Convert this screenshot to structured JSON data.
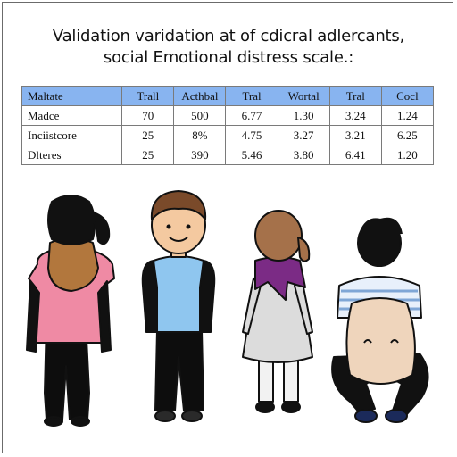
{
  "title": {
    "line1": "Validation varidation at of cdicral adlercants,",
    "line2": "social Emotional distress scale.:"
  },
  "table": {
    "headers": [
      "Maltate",
      "Trall",
      "Acthbal",
      "Tral",
      "Wortal",
      "Tral",
      "Cocl"
    ],
    "rows": [
      [
        "Madce",
        "70",
        "500",
        "6.77",
        "1.30",
        "3.24",
        "1.24"
      ],
      [
        "Inciistcore",
        "25",
        "8%",
        "4.75",
        "3.27",
        "3.21",
        "6.25"
      ],
      [
        "Dlteres",
        "25",
        "390",
        "5.46",
        "3.80",
        "6.41",
        "1.20"
      ]
    ]
  },
  "colors": {
    "header_bg": "#88b4f0",
    "pink_shirt": "#ef8aa4",
    "blue_shirt": "#8fc6ef",
    "purple_scarf": "#7b2b85",
    "tan": "#b2773d"
  }
}
